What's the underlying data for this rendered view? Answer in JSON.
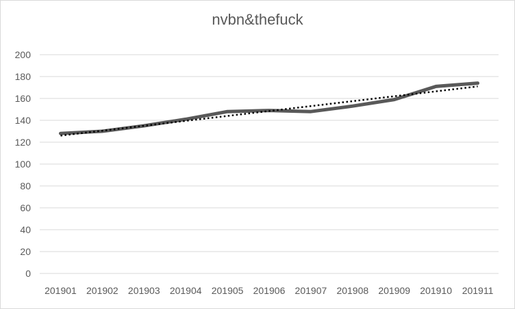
{
  "chart_data": {
    "type": "line",
    "title": "nvbn&thefuck",
    "categories": [
      "201901",
      "201902",
      "201903",
      "201904",
      "201905",
      "201906",
      "201907",
      "201908",
      "201909",
      "201910",
      "201911"
    ],
    "series": [
      {
        "values": [
          128,
          130,
          135,
          141,
          148,
          149,
          148,
          153,
          159,
          171,
          174
        ],
        "color": "#595959"
      }
    ],
    "trendline": {
      "type": "linear",
      "style": "dotted",
      "color": "#000000",
      "start": 126,
      "end": 171
    },
    "ylim": [
      0,
      200
    ],
    "yticks": [
      0,
      20,
      40,
      60,
      80,
      100,
      120,
      140,
      160,
      180,
      200
    ],
    "grid": true,
    "legend": "none"
  }
}
